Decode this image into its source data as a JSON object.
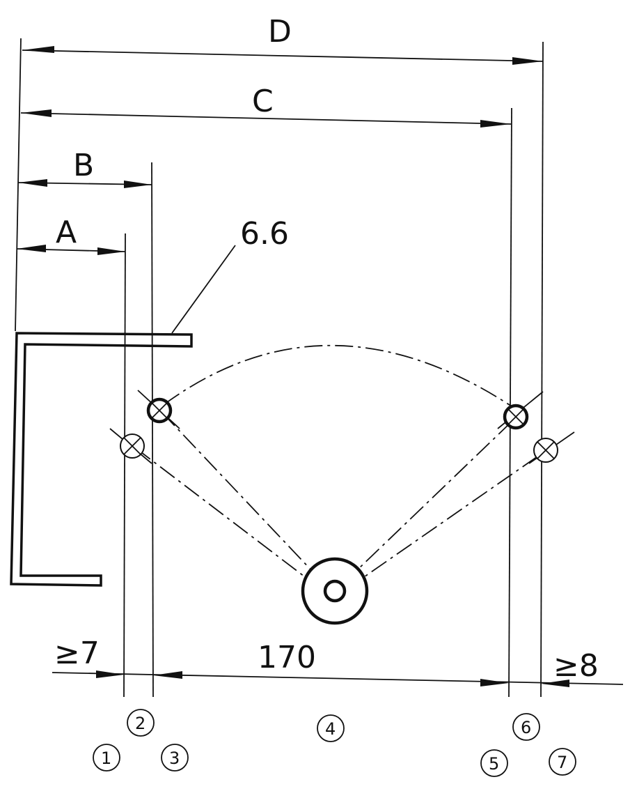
{
  "dimensions": {
    "D": "D",
    "C": "C",
    "B": "B",
    "A": "A",
    "sheet_thickness": "6.6",
    "left_min": "≥7",
    "center_span": "170",
    "right_min": "≥8"
  },
  "positions": [
    "1",
    "2",
    "3",
    "4",
    "5",
    "6",
    "7"
  ]
}
